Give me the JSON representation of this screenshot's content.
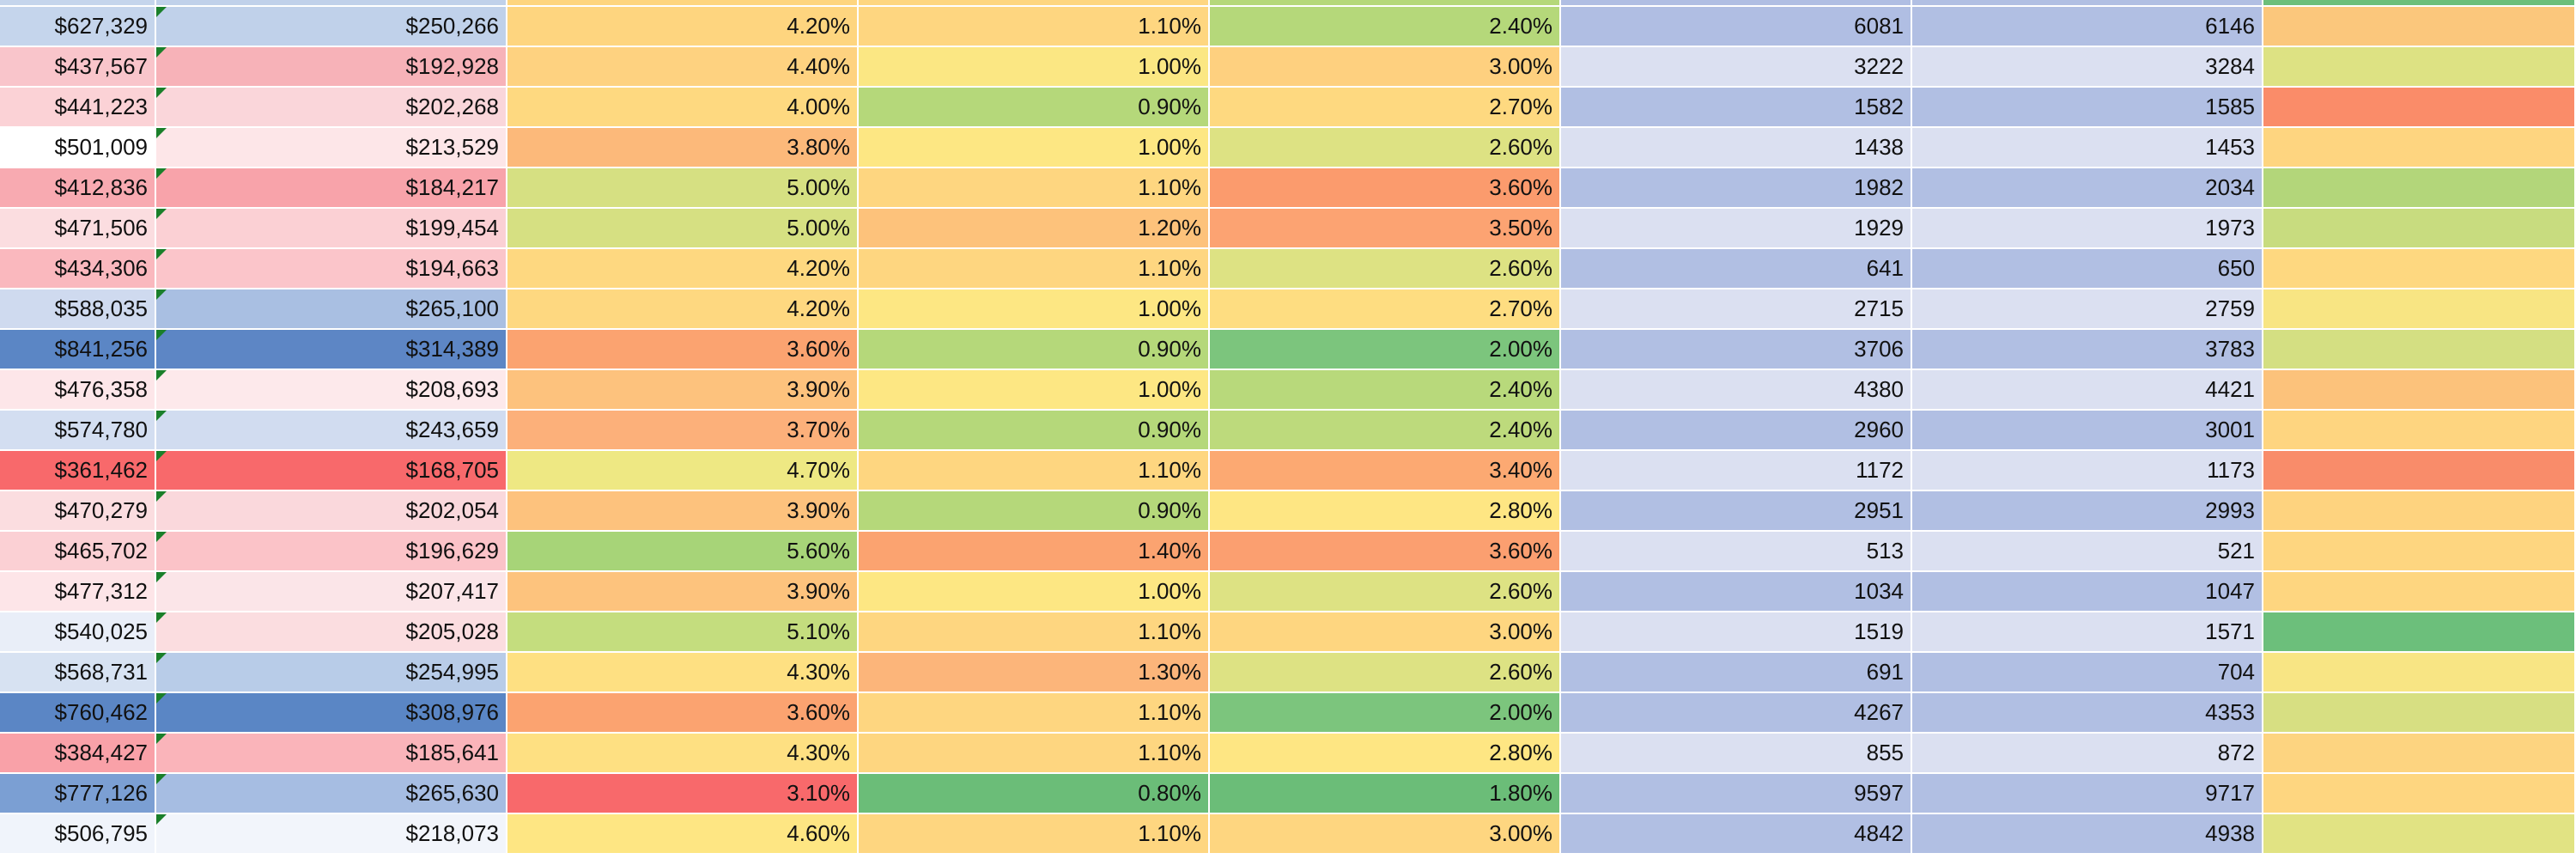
{
  "rows": [
    {
      "c0": "$627,329",
      "c1": "$250,266",
      "c2": "4.20%",
      "c3": "1.10%",
      "c4": "2.40%",
      "c5": "6081",
      "c6": "6146"
    },
    {
      "c0": "$437,567",
      "c1": "$192,928",
      "c2": "4.40%",
      "c3": "1.00%",
      "c4": "3.00%",
      "c5": "3222",
      "c6": "3284"
    },
    {
      "c0": "$441,223",
      "c1": "$202,268",
      "c2": "4.00%",
      "c3": "0.90%",
      "c4": "2.70%",
      "c5": "1582",
      "c6": "1585"
    },
    {
      "c0": "$501,009",
      "c1": "$213,529",
      "c2": "3.80%",
      "c3": "1.00%",
      "c4": "2.60%",
      "c5": "1438",
      "c6": "1453"
    },
    {
      "c0": "$412,836",
      "c1": "$184,217",
      "c2": "5.00%",
      "c3": "1.10%",
      "c4": "3.60%",
      "c5": "1982",
      "c6": "2034"
    },
    {
      "c0": "$471,506",
      "c1": "$199,454",
      "c2": "5.00%",
      "c3": "1.20%",
      "c4": "3.50%",
      "c5": "1929",
      "c6": "1973"
    },
    {
      "c0": "$434,306",
      "c1": "$194,663",
      "c2": "4.20%",
      "c3": "1.10%",
      "c4": "2.60%",
      "c5": "641",
      "c6": "650"
    },
    {
      "c0": "$588,035",
      "c1": "$265,100",
      "c2": "4.20%",
      "c3": "1.00%",
      "c4": "2.70%",
      "c5": "2715",
      "c6": "2759"
    },
    {
      "c0": "$841,256",
      "c1": "$314,389",
      "c2": "3.60%",
      "c3": "0.90%",
      "c4": "2.00%",
      "c5": "3706",
      "c6": "3783"
    },
    {
      "c0": "$476,358",
      "c1": "$208,693",
      "c2": "3.90%",
      "c3": "1.00%",
      "c4": "2.40%",
      "c5": "4380",
      "c6": "4421"
    },
    {
      "c0": "$574,780",
      "c1": "$243,659",
      "c2": "3.70%",
      "c3": "0.90%",
      "c4": "2.40%",
      "c5": "2960",
      "c6": "3001"
    },
    {
      "c0": "$361,462",
      "c1": "$168,705",
      "c2": "4.70%",
      "c3": "1.10%",
      "c4": "3.40%",
      "c5": "1172",
      "c6": "1173"
    },
    {
      "c0": "$470,279",
      "c1": "$202,054",
      "c2": "3.90%",
      "c3": "0.90%",
      "c4": "2.80%",
      "c5": "2951",
      "c6": "2993"
    },
    {
      "c0": "$465,702",
      "c1": "$196,629",
      "c2": "5.60%",
      "c3": "1.40%",
      "c4": "3.60%",
      "c5": "513",
      "c6": "521"
    },
    {
      "c0": "$477,312",
      "c1": "$207,417",
      "c2": "3.90%",
      "c3": "1.00%",
      "c4": "2.60%",
      "c5": "1034",
      "c6": "1047"
    },
    {
      "c0": "$540,025",
      "c1": "$205,028",
      "c2": "5.10%",
      "c3": "1.10%",
      "c4": "3.00%",
      "c5": "1519",
      "c6": "1571"
    },
    {
      "c0": "$568,731",
      "c1": "$254,995",
      "c2": "4.30%",
      "c3": "1.30%",
      "c4": "2.60%",
      "c5": "691",
      "c6": "704"
    },
    {
      "c0": "$760,462",
      "c1": "$308,976",
      "c2": "3.60%",
      "c3": "1.10%",
      "c4": "2.00%",
      "c5": "4267",
      "c6": "4353"
    },
    {
      "c0": "$384,427",
      "c1": "$185,641",
      "c2": "4.30%",
      "c3": "1.10%",
      "c4": "2.80%",
      "c5": "855",
      "c6": "872"
    },
    {
      "c0": "$777,126",
      "c1": "$265,630",
      "c2": "3.10%",
      "c3": "0.80%",
      "c4": "1.80%",
      "c5": "9597",
      "c6": "9717"
    },
    {
      "c0": "$506,795",
      "c1": "$218,073",
      "c2": "4.60%",
      "c3": "1.10%",
      "c4": "3.00%",
      "c5": "4842",
      "c6": "4938"
    }
  ],
  "fills": [
    [
      "#c5d5ec",
      "#c0d1ea",
      "#fed57f",
      "#fed680",
      "#b5d87a",
      "#b0bee3",
      "#b1bfe3",
      "#fbc77c"
    ],
    [
      "#f9c5cb",
      "#f7b2b8",
      "#fed280",
      "#fbe783",
      "#fed07f",
      "#dbe0f1",
      "#dbe0f1",
      "#dde283"
    ],
    [
      "#fbd2d6",
      "#fad6da",
      "#fed980",
      "#b5d87a",
      "#fed980",
      "#b1bfe3",
      "#b1bfe3",
      "#fa8c69"
    ],
    [
      "#ffffff",
      "#fde6e8",
      "#fcb97a",
      "#fde783",
      "#dde283",
      "#dbe0f1",
      "#dbe0f1",
      "#fed580"
    ],
    [
      "#f8aab1",
      "#f8a3aa",
      "#d6e082",
      "#fed680",
      "#fb9b6d",
      "#b1bfe3",
      "#b1bfe3",
      "#b3d67a"
    ],
    [
      "#fbdde0",
      "#fbd0d4",
      "#d6e082",
      "#fdc27b",
      "#fca372",
      "#dbe0f1",
      "#dbe0f1",
      "#c8dc7f"
    ],
    [
      "#fab8be",
      "#fbc5ca",
      "#fed880",
      "#fed680",
      "#dde283",
      "#b1bfe3",
      "#b1bfe3",
      "#fed880"
    ],
    [
      "#cfdaef",
      "#a9bfe2",
      "#fed880",
      "#fde783",
      "#fedd81",
      "#dbe0f1",
      "#dbe0f1",
      "#f8e583"
    ],
    [
      "#5b86c5",
      "#5d86c5",
      "#fba370",
      "#b5d87a",
      "#7cc57d",
      "#b1bfe3",
      "#b1bfe3",
      "#d4df82"
    ],
    [
      "#fde6e9",
      "#fde9eb",
      "#fdc27d",
      "#fde783",
      "#b8d97b",
      "#dbe0f1",
      "#dbe0f1",
      "#fcc27b"
    ],
    [
      "#d3def1",
      "#d1dcf0",
      "#fcb07a",
      "#b5d87a",
      "#bdda7c",
      "#b1bfe3",
      "#b1bfe3",
      "#fed580"
    ],
    [
      "#f8696b",
      "#f8696b",
      "#eee883",
      "#fed680",
      "#fca972",
      "#dbe0f1",
      "#dbe0f1",
      "#f98c6a"
    ],
    [
      "#fbdde0",
      "#fad8dc",
      "#fdc27d",
      "#b5d87a",
      "#fee683",
      "#b1bfe3",
      "#b1bfe3",
      "#fed37f"
    ],
    [
      "#fbd0d4",
      "#fbc3c8",
      "#a7d478",
      "#fba370",
      "#fb9f70",
      "#dbe0f1",
      "#dbe0f1",
      "#fed680"
    ],
    [
      "#fde5e8",
      "#fbe5e8",
      "#fdc37d",
      "#fde783",
      "#dde283",
      "#b1bfe3",
      "#b1bfe3",
      "#fed680"
    ],
    [
      "#e9eef8",
      "#fbdde0",
      "#c4dd7e",
      "#fed680",
      "#fed680",
      "#dbe0f1",
      "#dbe0f1",
      "#6cbf7b"
    ],
    [
      "#d7e2f2",
      "#b8cce8",
      "#fee082",
      "#fcb57a",
      "#dde283",
      "#b1bfe3",
      "#b1bfe3",
      "#f8e584"
    ],
    [
      "#5b86c5",
      "#5a86c5",
      "#fba370",
      "#fed680",
      "#7cc57d",
      "#b1bfe3",
      "#b1bfe3",
      "#d7df82"
    ],
    [
      "#f9a1a8",
      "#fab4ba",
      "#fee082",
      "#fed680",
      "#fee683",
      "#dbe0f1",
      "#dbe0f1",
      "#fdd480"
    ],
    [
      "#7b9fd3",
      "#a6bde2",
      "#f8696b",
      "#6bbd78",
      "#6bbd78",
      "#b1bfe3",
      "#b1bfe3",
      "#fed680"
    ],
    [
      "#f0f4fb",
      "#f2f5fb",
      "#fee683",
      "#fed680",
      "#fed680",
      "#b1bfe3",
      "#b1bfe3",
      "#e1e383"
    ]
  ]
}
